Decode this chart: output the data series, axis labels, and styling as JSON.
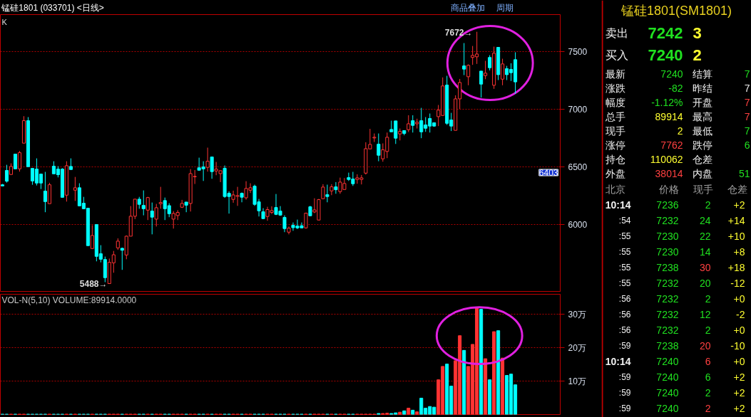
{
  "chart_data": [
    {
      "type": "candlestick",
      "title": "锰硅1801 (033701) <日线>",
      "categories": [
        null,
        null,
        null,
        null,
        null,
        null,
        null,
        null,
        null,
        null,
        null,
        null,
        null,
        null,
        null,
        null,
        null,
        null,
        null,
        null,
        null,
        null,
        null,
        null,
        null,
        null,
        null,
        null,
        null,
        null,
        null,
        null,
        null,
        null,
        null,
        null,
        null,
        null,
        null,
        null,
        null,
        null,
        null,
        null,
        null,
        null,
        null,
        null,
        null,
        null,
        null,
        null,
        null,
        null,
        null,
        null,
        null,
        null,
        null,
        null,
        null,
        null,
        null,
        null,
        null,
        null,
        null,
        null,
        null,
        null,
        null,
        null,
        null,
        null,
        null,
        null,
        null,
        null,
        null,
        null,
        null,
        null,
        null,
        null,
        null,
        null,
        null,
        null,
        null,
        null,
        null,
        null,
        null,
        null,
        null,
        null,
        null,
        null,
        null,
        null,
        null,
        null,
        null,
        null,
        null,
        null,
        null,
        null,
        null,
        null,
        null,
        null,
        null,
        null,
        null,
        null,
        null,
        null,
        null,
        null,
        null,
        null,
        null,
        null,
        null,
        null,
        null,
        null,
        null,
        null,
        null
      ],
      "ohlc": [
        [
          6345,
          6352,
          6335,
          6335
        ],
        [
          6469,
          6518,
          6364,
          6376
        ],
        [
          6434,
          6531,
          6434,
          6504
        ],
        [
          6611,
          6611,
          6483,
          6483
        ],
        [
          6483,
          6638,
          6459,
          6623
        ],
        [
          6706,
          6940,
          6706,
          6901
        ],
        [
          6901,
          6932,
          6502,
          6502
        ],
        [
          6487,
          6487,
          6345,
          6378
        ],
        [
          6481,
          6574,
          6339,
          6360
        ],
        [
          6438,
          6438,
          6308,
          6360
        ],
        [
          6290,
          6457,
          6107,
          6199
        ],
        [
          6181,
          6362,
          6181,
          6345
        ],
        [
          6506,
          6549,
          6440,
          6440
        ],
        [
          6481,
          6506,
          6409,
          6432
        ],
        [
          6481,
          6489,
          6236,
          6236
        ],
        [
          6255,
          6549,
          6199,
          6510
        ],
        [
          6504,
          6574,
          6477,
          6477
        ],
        [
          6298,
          6413,
          6205,
          6319
        ],
        [
          6319,
          6358,
          6162,
          6162
        ],
        [
          6185,
          6240,
          6137,
          6137
        ],
        [
          6142,
          6142,
          5817,
          5817
        ],
        [
          5792,
          5994,
          5788,
          5905
        ],
        [
          6000,
          6000,
          5681,
          5724
        ],
        [
          5747,
          5821,
          5672,
          5699
        ],
        [
          5697,
          5722,
          5500,
          5539
        ],
        [
          5488,
          5705,
          5488,
          5672
        ],
        [
          5668,
          5771,
          5582,
          5738
        ],
        [
          5798,
          5880,
          5780,
          5856
        ],
        [
          5794,
          5800,
          5607,
          5777
        ],
        [
          5736,
          5905,
          5699,
          5899
        ],
        [
          5899,
          6160,
          5899,
          6072
        ],
        [
          6072,
          6220,
          6047,
          6220
        ],
        [
          6220,
          6240,
          6137,
          6175
        ],
        [
          6166,
          6296,
          6080,
          6137
        ],
        [
          6125,
          6240,
          6039,
          6234
        ],
        [
          6117,
          6191,
          5915,
          6064
        ],
        [
          6047,
          6179,
          5983,
          6146
        ],
        [
          6181,
          6327,
          6137,
          6191
        ],
        [
          6208,
          6234,
          6039,
          6137
        ],
        [
          6164,
          6185,
          6064,
          6094
        ],
        [
          6047,
          6117,
          5965,
          6096
        ],
        [
          6078,
          6125,
          6039,
          6105
        ],
        [
          6150,
          6214,
          6144,
          6183
        ],
        [
          6195,
          6195,
          6107,
          6168
        ],
        [
          6183,
          6481,
          6113,
          6442
        ],
        [
          6414,
          6473,
          6352,
          6418
        ],
        [
          6492,
          6580,
          6471,
          6471
        ],
        [
          6500,
          6549,
          6378,
          6483
        ],
        [
          6496,
          6667,
          6459,
          6549
        ],
        [
          6586,
          6586,
          6397,
          6459
        ],
        [
          6465,
          6543,
          6428,
          6481
        ],
        [
          6442,
          6467,
          6368,
          6467
        ],
        [
          6488,
          6512,
          6232,
          6243
        ],
        [
          6271,
          6288,
          6095,
          6243
        ],
        [
          6218,
          6294,
          6189,
          6257
        ],
        [
          6245,
          6327,
          6162,
          6251
        ],
        [
          6271,
          6278,
          6193,
          6237
        ],
        [
          6232,
          6376,
          6216,
          6313
        ],
        [
          6298,
          6358,
          6274,
          6319
        ],
        [
          6333,
          6346,
          6162,
          6175
        ],
        [
          6197,
          6222,
          6070,
          6119
        ],
        [
          6111,
          6142,
          6051,
          6051
        ],
        [
          6070,
          6154,
          6033,
          6130
        ],
        [
          6105,
          6158,
          6092,
          6121
        ],
        [
          6148,
          6265,
          6082,
          6088
        ],
        [
          6117,
          6160,
          6076,
          6082
        ],
        [
          6062,
          6080,
          5934,
          5965
        ],
        [
          5934,
          5983,
          5915,
          5969
        ],
        [
          5994,
          6018,
          5946,
          5973
        ],
        [
          5987,
          6043,
          5961,
          5971
        ],
        [
          5990,
          6018,
          5967,
          5971
        ],
        [
          5971,
          6099,
          5965,
          6099
        ],
        [
          6154,
          6162,
          6076,
          6076
        ],
        [
          6109,
          6228,
          6099,
          6127
        ],
        [
          6039,
          6222,
          6039,
          6216
        ],
        [
          6224,
          6350,
          6224,
          6325
        ],
        [
          6259,
          6346,
          6193,
          6243
        ],
        [
          6292,
          6350,
          6255,
          6327
        ],
        [
          6327,
          6368,
          6267,
          6302
        ],
        [
          6286,
          6407,
          6267,
          6368
        ],
        [
          6304,
          6403,
          6304,
          6356
        ],
        [
          6407,
          6450,
          6378,
          6391
        ],
        [
          6395,
          6457,
          6335,
          6354
        ],
        [
          6391,
          6436,
          6354,
          6405
        ],
        [
          6391,
          6430,
          6348,
          6405
        ],
        [
          6446,
          6714,
          6434,
          6658
        ],
        [
          6656,
          6830,
          6656,
          6695
        ],
        [
          6751,
          6790,
          6716,
          6757
        ],
        [
          6697,
          6790,
          6549,
          6601
        ],
        [
          6570,
          6704,
          6545,
          6648
        ],
        [
          6634,
          6798,
          6576,
          6757
        ],
        [
          6825,
          6901,
          6804,
          6804
        ],
        [
          6899,
          6899,
          6699,
          6749
        ],
        [
          6786,
          6833,
          6730,
          6808
        ],
        [
          6815,
          6815,
          6774,
          6790
        ],
        [
          6823,
          6948,
          6802,
          6874
        ],
        [
          6901,
          6948,
          6798,
          6860
        ],
        [
          6874,
          6918,
          6833,
          6887
        ],
        [
          6901,
          7012,
          6749,
          6804
        ],
        [
          6864,
          6932,
          6804,
          6835
        ],
        [
          6920,
          6963,
          6798,
          6854
        ],
        [
          6883,
          6883,
          6848,
          6854
        ],
        [
          6936,
          7037,
          6854,
          6992
        ],
        [
          6946,
          7276,
          6946,
          7202
        ],
        [
          7210,
          7290,
          6864,
          6878
        ],
        [
          6907,
          6969,
          6811,
          6854
        ],
        [
          6817,
          7121,
          6817,
          7090
        ],
        [
          7090,
          7263,
          7002,
          7232
        ],
        [
          7376,
          7574,
          7296,
          7348
        ],
        [
          7282,
          7389,
          7208,
          7381
        ],
        [
          7449,
          7549,
          7385,
          7467
        ],
        [
          7455,
          7672,
          7393,
          7479
        ],
        [
          7331,
          7331,
          7101,
          7218
        ],
        [
          7292,
          7420,
          7261,
          7313
        ],
        [
          7449,
          7469,
          7337,
          7360
        ],
        [
          7208,
          7543,
          7177,
          7486
        ],
        [
          7537,
          7537,
          7253,
          7300
        ],
        [
          7261,
          7438,
          7208,
          7393
        ],
        [
          7352,
          7376,
          7253,
          7300
        ],
        [
          7346,
          7399,
          7245,
          7317
        ],
        [
          7430,
          7494,
          7134,
          7237
        ],
        null,
        null,
        null,
        null,
        null,
        null,
        null,
        null,
        null,
        null
      ],
      "colors": [
        "#00ffff",
        "#00ffff",
        "#ff3333",
        "#00ffff",
        "#ff3333",
        "#ff3333",
        "#00ffff",
        "#00ffff",
        "#00ffff",
        "#00ffff",
        "#00ffff",
        "#ff3333",
        "#00ffff",
        "#00ffff",
        "#00ffff",
        "#ff3333",
        "#00ffff",
        "#ff3333",
        "#00ffff",
        "#00ffff",
        "#00ffff",
        "#ff3333",
        "#00ffff",
        "#00ffff",
        "#00ffff",
        "#ff3333",
        "#ff3333",
        "#ff3333",
        "#00ffff",
        "#ff3333",
        "#ff3333",
        "#ff3333",
        "#00ffff",
        "#00ffff",
        "#ff3333",
        "#00ffff",
        "#ff3333",
        "#ff3333",
        "#00ffff",
        "#00ffff",
        "#ff3333",
        "#ff3333",
        "#ff3333",
        "#00ffff",
        "#ff3333",
        "#ff3333",
        "#00ffff",
        "#00ffff",
        "#ff3333",
        "#00ffff",
        "#ff3333",
        "#ff3333",
        "#00ffff",
        "#00ffff",
        "#ff3333",
        "#ff3333",
        "#00ffff",
        "#ff3333",
        "#ff3333",
        "#00ffff",
        "#00ffff",
        "#00ffff",
        "#ff3333",
        "#ff3333",
        "#00ffff",
        "#00ffff",
        "#00ffff",
        "#ff3333",
        "#00ffff",
        "#00ffff",
        "#00ffff",
        "#ff3333",
        "#00ffff",
        "#ff3333",
        "#ff3333",
        "#ff3333",
        "#00ffff",
        "#ff3333",
        "#00ffff",
        "#ff3333",
        "#ff3333",
        "#00ffff",
        "#00ffff",
        "#ff3333",
        "#ff3333",
        "#ff3333",
        "#ff3333",
        "#ff3333",
        "#00ffff",
        "#ff3333",
        "#ff3333",
        "#00ffff",
        "#00ffff",
        "#ff3333",
        "#00ffff",
        "#ff3333",
        "#00ffff",
        "#ff3333",
        "#00ffff",
        "#00ffff",
        "#00ffff",
        "#00ffff",
        "#ff3333",
        "#ff3333",
        "#00ffff",
        "#00ffff",
        "#ff3333",
        "#ff3333",
        "#00ffff",
        "#ff3333",
        "#ff3333",
        "#ff3333",
        "#00ffff",
        "#ff3333",
        "#00ffff",
        "#ff3333",
        "#00ffff",
        "#ff3333",
        "#00ffff",
        "#00ffff",
        "#00ffff",
        null,
        null,
        null,
        null,
        null,
        null,
        null,
        null,
        null,
        null
      ],
      "ylim": [
        5414,
        7821
      ],
      "yticks": [
        6000,
        6500,
        7000,
        7500
      ],
      "grid": "y",
      "tick_labels": "y",
      "annotations": [
        "K",
        "6403",
        "商品叠加",
        "周期",
        "7672→",
        "5488→"
      ]
    },
    {
      "type": "bar",
      "categories": [
        null,
        null,
        null,
        null,
        null,
        null,
        null,
        null,
        null,
        null,
        null,
        null,
        null,
        null,
        null,
        null,
        null,
        null,
        null,
        null,
        null,
        null,
        null,
        null,
        null,
        null,
        null,
        null,
        null,
        null,
        null,
        null,
        null,
        null,
        null,
        null,
        null,
        null,
        null,
        null,
        null,
        null,
        null,
        null,
        null,
        null,
        null,
        null,
        null,
        null,
        null,
        null,
        null,
        null,
        null,
        null,
        null,
        null,
        null,
        null,
        null,
        null,
        null,
        null,
        null,
        null,
        null,
        null,
        null,
        null,
        null,
        null,
        null,
        null,
        null,
        null,
        null,
        null,
        null,
        null,
        null,
        null,
        null,
        null,
        null,
        null,
        null,
        null,
        null,
        null,
        null,
        null,
        null,
        null,
        null,
        null,
        null,
        null,
        null,
        null,
        null,
        null,
        null,
        null,
        null,
        null,
        null,
        null,
        null,
        null,
        null,
        null,
        null,
        null,
        null,
        null,
        null,
        null,
        null,
        null,
        null,
        null,
        null,
        null,
        null,
        null,
        null,
        null,
        null,
        null,
        null
      ],
      "values": [
        0.1,
        0.1,
        0.1,
        0.1,
        0.1,
        0.1,
        0.1,
        0.1,
        0.1,
        0.1,
        0.1,
        0.1,
        0.1,
        0.1,
        0.1,
        0.1,
        0.1,
        0.1,
        0.1,
        0.1,
        0.1,
        0.1,
        0.1,
        0.1,
        0.1,
        0.1,
        0.1,
        0.1,
        0.1,
        0.1,
        0.1,
        0.1,
        0.1,
        0.1,
        0.1,
        0.1,
        0.1,
        0.1,
        0.1,
        0.1,
        0.1,
        0.1,
        0.1,
        0.1,
        0.1,
        0.1,
        0.1,
        0.1,
        0.1,
        0.1,
        0.1,
        0.1,
        0.1,
        0.1,
        0.1,
        0.1,
        0.1,
        0.1,
        0.1,
        0.1,
        0.1,
        0.1,
        0.1,
        0.1,
        0.1,
        0.1,
        0.1,
        0.1,
        0.1,
        0.1,
        0.1,
        0.1,
        0.1,
        0.1,
        0.1,
        0.1,
        0.1,
        0.1,
        0.1,
        0.1,
        0.1,
        0.1,
        0.1,
        0.1,
        0.1,
        0.1,
        0.1,
        0.1,
        0.3,
        0.3,
        0.4,
        0.3,
        0.5,
        0.7,
        1.1,
        1.9,
        1.3,
        0.8,
        4.9,
        1.9,
        2.4,
        2.2,
        10.4,
        14.4,
        15.1,
        8.5,
        16.1,
        23.6,
        19.2,
        14.4,
        21.0,
        32.1,
        31.5,
        16.7,
        10.4,
        24.8,
        25.1,
        16.9,
        11.7,
        12.1,
        8.9,
        null,
        null,
        null,
        null,
        null,
        null,
        null,
        null,
        null,
        null
      ],
      "colors": [
        "#00ffff",
        "#00ffff",
        "#ff3333",
        "#00ffff",
        "#ff3333",
        "#ff3333",
        "#00ffff",
        "#00ffff",
        "#00ffff",
        "#00ffff",
        "#00ffff",
        "#ff3333",
        "#00ffff",
        "#00ffff",
        "#00ffff",
        "#ff3333",
        "#00ffff",
        "#ff3333",
        "#00ffff",
        "#00ffff",
        "#00ffff",
        "#ff3333",
        "#00ffff",
        "#00ffff",
        "#00ffff",
        "#ff3333",
        "#ff3333",
        "#ff3333",
        "#00ffff",
        "#ff3333",
        "#ff3333",
        "#ff3333",
        "#00ffff",
        "#00ffff",
        "#ff3333",
        "#00ffff",
        "#ff3333",
        "#ff3333",
        "#00ffff",
        "#00ffff",
        "#ff3333",
        "#ff3333",
        "#ff3333",
        "#00ffff",
        "#ff3333",
        "#ff3333",
        "#00ffff",
        "#00ffff",
        "#ff3333",
        "#00ffff",
        "#ff3333",
        "#ff3333",
        "#00ffff",
        "#00ffff",
        "#ff3333",
        "#ff3333",
        "#00ffff",
        "#ff3333",
        "#ff3333",
        "#00ffff",
        "#00ffff",
        "#00ffff",
        "#ff3333",
        "#ff3333",
        "#00ffff",
        "#00ffff",
        "#00ffff",
        "#ff3333",
        "#00ffff",
        "#00ffff",
        "#00ffff",
        "#ff3333",
        "#00ffff",
        "#ff3333",
        "#ff3333",
        "#ff3333",
        "#00ffff",
        "#ff3333",
        "#00ffff",
        "#ff3333",
        "#ff3333",
        "#00ffff",
        "#00ffff",
        "#ff3333",
        "#ff3333",
        "#ff3333",
        "#ff3333",
        "#ff3333",
        "#00ffff",
        "#ff3333",
        "#ff3333",
        "#00ffff",
        "#00ffff",
        "#ff3333",
        "#00ffff",
        "#ff3333",
        "#00ffff",
        "#ff3333",
        "#00ffff",
        "#00ffff",
        "#00ffff",
        "#00ffff",
        "#ff3333",
        "#ff3333",
        "#00ffff",
        "#00ffff",
        "#ff3333",
        "#ff3333",
        "#00ffff",
        "#ff3333",
        "#ff3333",
        "#ff3333",
        "#00ffff",
        "#ff3333",
        "#00ffff",
        "#ff3333",
        "#00ffff",
        "#ff3333",
        "#00ffff",
        "#00ffff",
        "#00ffff",
        null,
        null,
        null,
        null,
        null,
        null,
        null,
        null,
        null,
        null
      ],
      "ylim": [
        0,
        36
      ],
      "yticks": [
        {
          "value": 10,
          "label": "10万"
        },
        {
          "value": 20,
          "label": "20万"
        },
        {
          "value": 30,
          "label": "30万"
        }
      ],
      "grid": "y",
      "tick_labels": "y",
      "annotations": [
        "VOL-N(5,10) VOLUME:89914.0000"
      ]
    },
    {
      "type": "other",
      "title": "锰硅1801(SM1801)",
      "annotations": [
        "卖出",
        "7242",
        "3",
        "买入",
        "7240",
        "2",
        "最新",
        "7240",
        "结算",
        "7",
        "涨跌",
        "-82",
        "昨结",
        "7",
        "幅度",
        "-1.12%",
        "开盘",
        "7",
        "总手",
        "89914",
        "最高",
        "7",
        "现手",
        "2",
        "最低",
        "7",
        "涨停",
        "7762",
        "跌停",
        "6",
        "持仓",
        "110062",
        "仓差",
        "外盘",
        "38014",
        "内盘",
        "51",
        "北京",
        "价格",
        "现手",
        "仓差",
        "10:14",
        "7236",
        "2",
        "+2",
        ":54",
        "7232",
        "24",
        "+14",
        ":55",
        "7230",
        "22",
        "+10",
        ":55",
        "7230",
        "14",
        "+8",
        ":55",
        "7238",
        "30",
        "+18",
        ":55",
        "7232",
        "20",
        "-12",
        ":56",
        "7232",
        "2",
        "+0",
        ":56",
        "7232",
        "12",
        "-2",
        ":56",
        "7232",
        "2",
        "+0",
        ":59",
        "7238",
        "20",
        "-10",
        "10:14",
        "7240",
        "6",
        "+0",
        ":59",
        "7240",
        "6",
        "+2",
        ":59",
        "7240",
        "2",
        "+2",
        ":59",
        "7240",
        "2",
        "+2"
      ]
    }
  ]
}
